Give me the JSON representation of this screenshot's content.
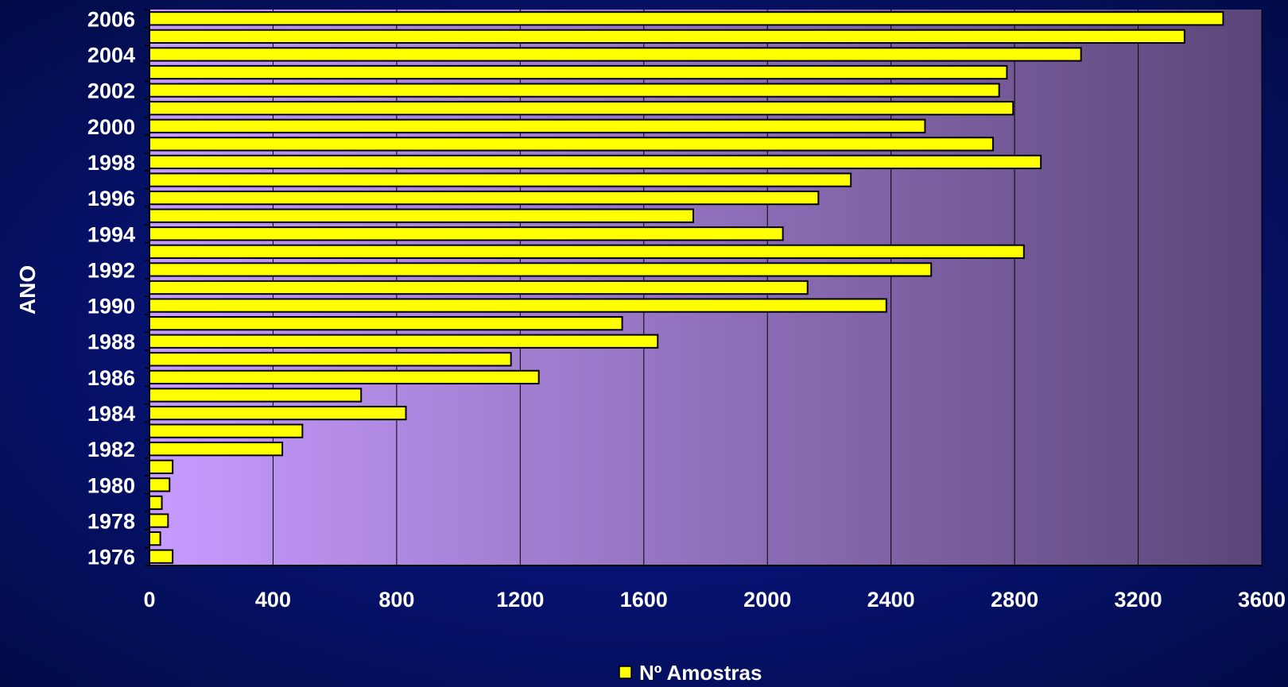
{
  "chart_data": {
    "type": "bar",
    "orientation": "horizontal",
    "title": "",
    "xlabel": "",
    "ylabel": "ANO",
    "categories": [
      "1976",
      "1977",
      "1978",
      "1979",
      "1980",
      "1981",
      "1982",
      "1983",
      "1984",
      "1985",
      "1986",
      "1987",
      "1988",
      "1989",
      "1990",
      "1991",
      "1992",
      "1993",
      "1994",
      "1995",
      "1996",
      "1997",
      "1998",
      "1999",
      "2000",
      "2001",
      "2002",
      "2003",
      "2004",
      "2005",
      "2006"
    ],
    "category_tick_labels": [
      "1976",
      "",
      "1978",
      "",
      "1980",
      "",
      "1982",
      "",
      "1984",
      "",
      "1986",
      "",
      "1988",
      "",
      "1990",
      "",
      "1992",
      "",
      "1994",
      "",
      "1996",
      "",
      "1998",
      "",
      "2000",
      "",
      "2002",
      "",
      "2004",
      "",
      "2006"
    ],
    "series": [
      {
        "name": "Nº Amostras",
        "values": [
          75,
          35,
          60,
          40,
          65,
          75,
          430,
          495,
          830,
          685,
          1260,
          1170,
          1645,
          1530,
          2385,
          2130,
          2530,
          2830,
          2050,
          1760,
          2165,
          2270,
          2885,
          2730,
          2510,
          2795,
          2750,
          2775,
          3015,
          3350,
          3475
        ]
      }
    ],
    "xlim": [
      0,
      3600
    ],
    "x_ticks": [
      "0",
      "400",
      "800",
      "1200",
      "1600",
      "2000",
      "2400",
      "2800",
      "3200",
      "3600"
    ],
    "grid": "vertical",
    "legend": "bottom-center",
    "colors": {
      "bar_fill": "#ffff00",
      "bar_stroke": "#000000",
      "plot_bg_left": "#c79bff",
      "plot_bg_right": "#5a4678",
      "gridline": "#000000",
      "text": "#ffffff"
    }
  }
}
